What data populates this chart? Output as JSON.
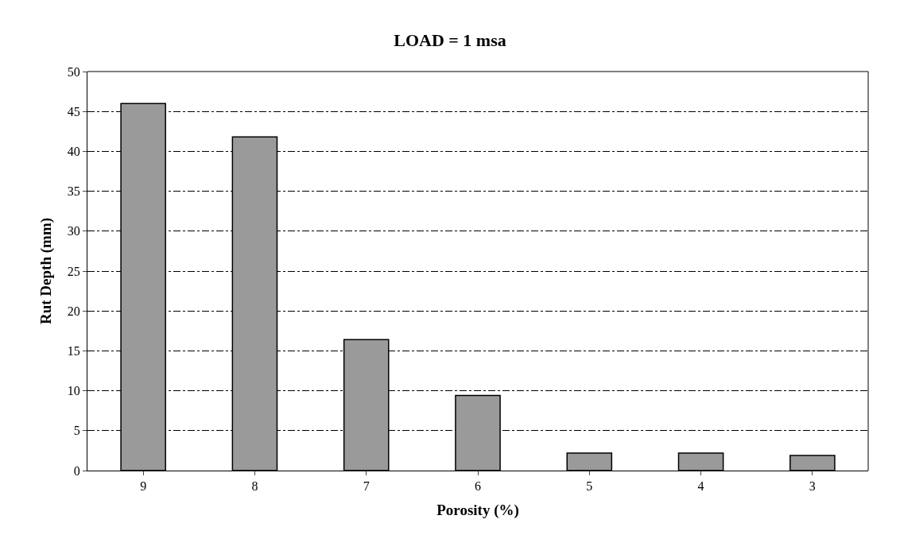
{
  "chart_data": {
    "type": "bar",
    "title": "LOAD = 1 msa",
    "xlabel": "Porosity (%)",
    "ylabel": "Rut Depth (mm)",
    "categories": [
      "9",
      "8",
      "7",
      "6",
      "5",
      "4",
      "3"
    ],
    "values": [
      46,
      41.8,
      16.4,
      9.4,
      2.2,
      2.2,
      1.9
    ],
    "color": "#9a9a9a",
    "ylim": [
      0,
      50
    ],
    "yticks": [
      0,
      5,
      10,
      15,
      20,
      25,
      30,
      35,
      40,
      45,
      50
    ],
    "grid": "y",
    "legend": false
  }
}
